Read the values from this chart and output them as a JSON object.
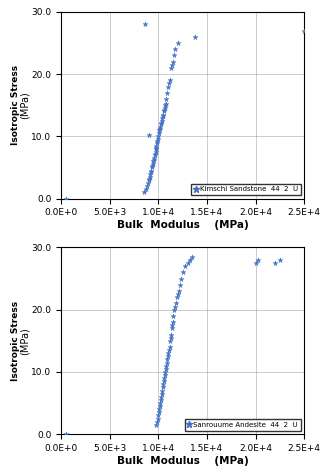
{
  "plot1": {
    "label": "Kimschi Sandstone  44  2  U",
    "color": "#4472C4",
    "x": [
      500,
      8500,
      8700,
      8800,
      8900,
      9000,
      9000,
      9100,
      9100,
      9200,
      9200,
      9300,
      9300,
      9400,
      9400,
      9500,
      9500,
      9600,
      9600,
      9700,
      9700,
      9800,
      9800,
      9900,
      9900,
      10000,
      10000,
      10100,
      10100,
      10200,
      10200,
      10300,
      10300,
      10400,
      10400,
      10500,
      10500,
      10600,
      10600,
      10700,
      10700,
      10800,
      10800,
      10900,
      11000,
      11100,
      11200,
      11300,
      11400,
      11500,
      11600,
      11700,
      12000,
      13800,
      25000,
      8600,
      9050
    ],
    "y": [
      0.0,
      1.0,
      1.5,
      2.0,
      2.5,
      3.0,
      3.2,
      3.5,
      4.0,
      4.2,
      4.5,
      5.0,
      5.2,
      5.5,
      6.0,
      6.2,
      6.5,
      7.0,
      7.2,
      7.5,
      8.0,
      8.2,
      8.5,
      9.0,
      9.2,
      9.5,
      10.0,
      10.5,
      11.0,
      11.2,
      11.5,
      12.0,
      12.2,
      12.5,
      13.0,
      13.2,
      13.5,
      14.0,
      14.2,
      14.5,
      15.0,
      15.2,
      16.0,
      17.0,
      18.0,
      18.5,
      19.0,
      21.0,
      21.5,
      22.0,
      23.0,
      24.0,
      25.0,
      26.0,
      27.0,
      28.0,
      10.2
    ]
  },
  "plot2": {
    "label": "Sanrouume Andesite  44  2  U",
    "color": "#4472C4",
    "x": [
      500,
      9800,
      9900,
      10000,
      10000,
      10100,
      10100,
      10200,
      10200,
      10300,
      10300,
      10400,
      10400,
      10500,
      10500,
      10600,
      10600,
      10700,
      10700,
      10800,
      10800,
      10900,
      10900,
      11000,
      11000,
      11100,
      11200,
      11200,
      11300,
      11300,
      11400,
      11400,
      11500,
      11500,
      11600,
      11700,
      11800,
      11900,
      12000,
      12100,
      12200,
      12300,
      12500,
      12700,
      13000,
      13200,
      13500,
      20000,
      20200,
      22000,
      22500
    ],
    "y": [
      0.0,
      1.5,
      2.0,
      2.5,
      3.0,
      3.5,
      4.0,
      4.5,
      5.0,
      5.5,
      6.0,
      6.5,
      7.0,
      7.5,
      8.0,
      8.5,
      9.0,
      9.5,
      10.0,
      10.5,
      11.0,
      11.5,
      12.0,
      12.5,
      13.0,
      13.5,
      14.0,
      15.0,
      15.5,
      16.0,
      17.0,
      17.5,
      18.0,
      19.0,
      20.0,
      20.5,
      21.0,
      22.0,
      22.5,
      23.0,
      24.0,
      25.0,
      26.0,
      27.0,
      27.5,
      28.0,
      28.5,
      27.5,
      28.0,
      27.5,
      28.0
    ]
  },
  "xlim": [
    0,
    25000
  ],
  "ylim": [
    0,
    30
  ],
  "xlabel": "Bulk  Modulus    (MPa)",
  "ylabel": "Isotropic Stress",
  "yunits": "(MPa)",
  "xticks": [
    0,
    5000,
    10000,
    15000,
    20000,
    25000
  ],
  "yticks": [
    0.0,
    10.0,
    20.0,
    30.0
  ],
  "bg_color": "#ffffff",
  "grid_color": "#888888"
}
